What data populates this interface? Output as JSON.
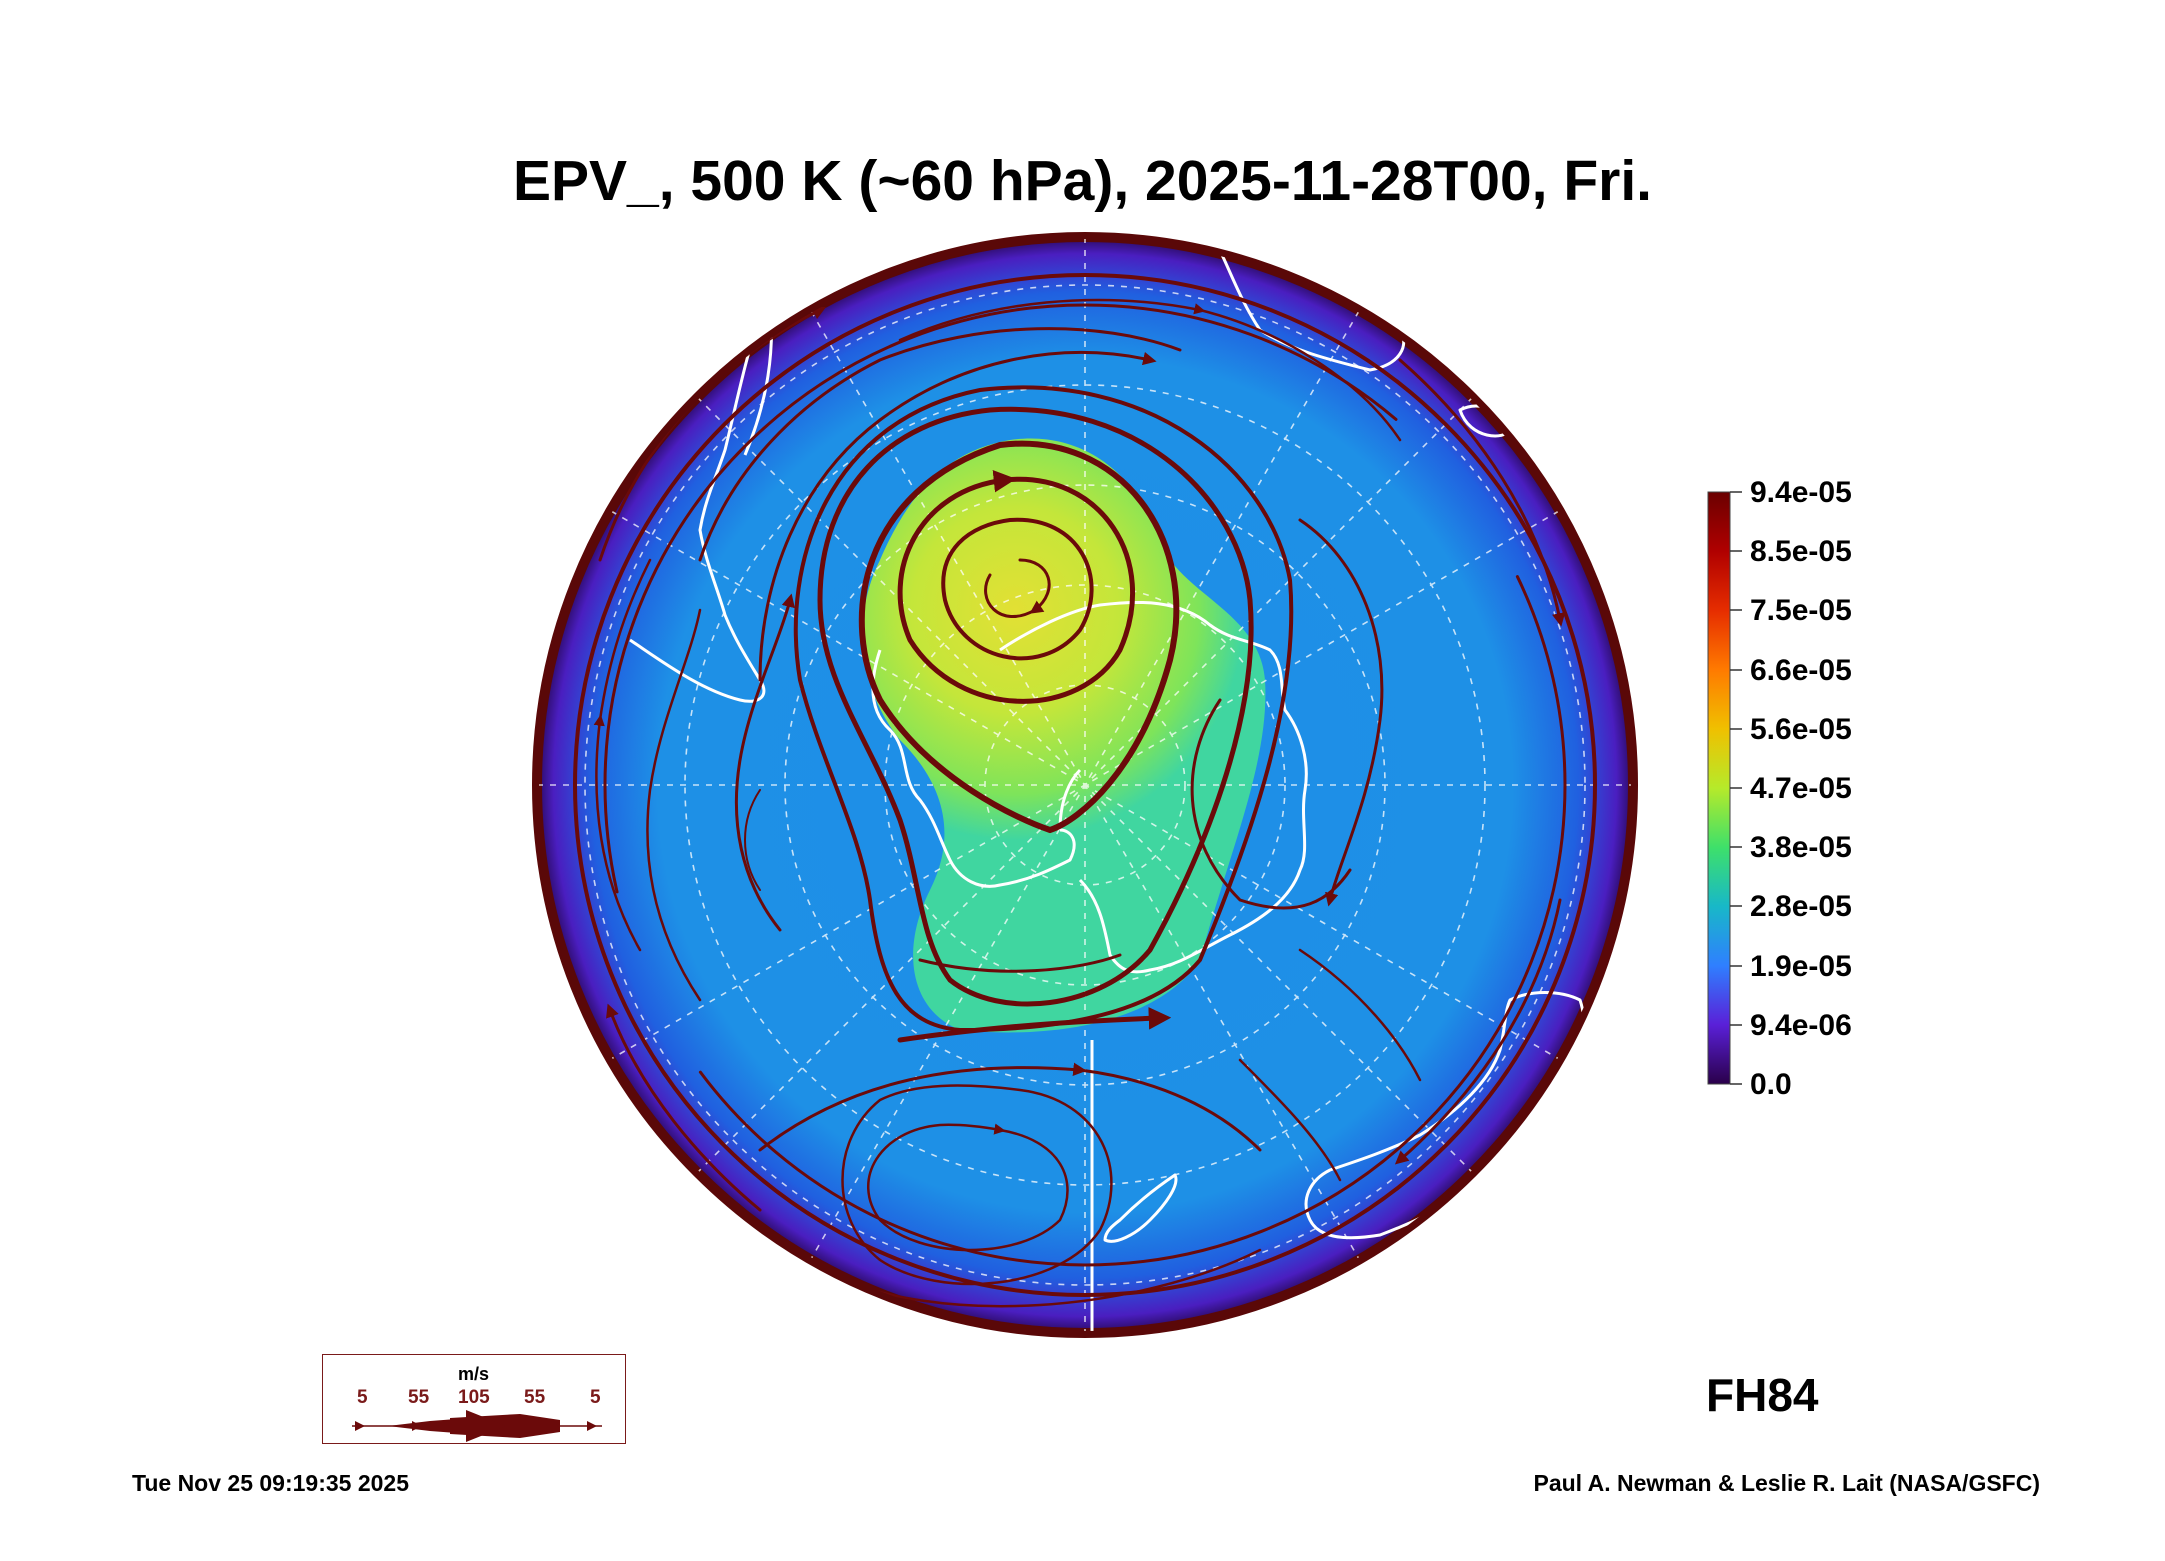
{
  "title": "EPV_, 500 K (~60 hPa), 2025-11-28T00, Fri.",
  "colorbar": {
    "labels": [
      "9.4e-05",
      "8.5e-05",
      "7.5e-05",
      "6.6e-05",
      "5.6e-05",
      "4.7e-05",
      "3.8e-05",
      "2.8e-05",
      "1.9e-05",
      "9.4e-06",
      "0.0"
    ],
    "colors": [
      "#6b0000",
      "#b00000",
      "#e62d00",
      "#ff7a00",
      "#f0c000",
      "#b6ea2a",
      "#3ee06a",
      "#18b8c8",
      "#2f7fff",
      "#5a20d8",
      "#2a004a"
    ]
  },
  "forecast_hour": "FH84",
  "timestamp": "Tue Nov 25 09:19:35 2025",
  "credit": "Paul A. Newman & Leslie R. Lait (NASA/GSFC)",
  "wind_legend": {
    "unit": "m/s",
    "speeds": [
      "5",
      "55",
      "105",
      "55",
      "5"
    ]
  },
  "map_colors": {
    "background_field": "#1e8ee8",
    "rim": "#3a1a8a",
    "vortex_core": "#d8e83a",
    "streamline": "#6b0a0a",
    "coastline": "#ffffff"
  }
}
